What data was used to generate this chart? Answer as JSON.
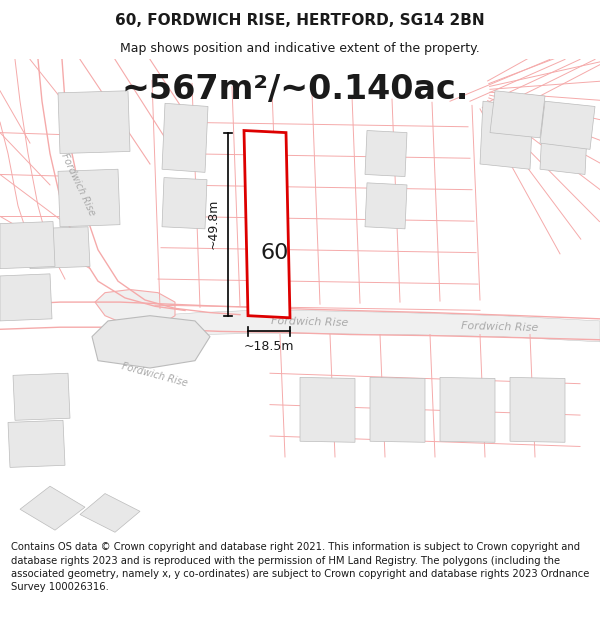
{
  "title": "60, FORDWICH RISE, HERTFORD, SG14 2BN",
  "subtitle": "Map shows position and indicative extent of the property.",
  "area_text": "~567m²/~0.140ac.",
  "label_60": "60",
  "dim_width": "~18.5m",
  "dim_height": "~49.8m",
  "road_label_center": "Fordwich Rise",
  "road_label_left": "Fordwich Rise",
  "road_label_right": "Fordwich Rise",
  "road_label_bottom": "Fordwich Rise",
  "copyright_text": "Contains OS data © Crown copyright and database right 2021. This information is subject to Crown copyright and database rights 2023 and is reproduced with the permission of HM Land Registry. The polygons (including the associated geometry, namely x, y co-ordinates) are subject to Crown copyright and database rights 2023 Ordnance Survey 100026316.",
  "bg_color": "#ffffff",
  "map_bg": "#ffffff",
  "plot_color_fill": "#ffffff",
  "plot_color_edge": "#dd0000",
  "neighbor_fill": "#e8e8e8",
  "neighbor_edge": "#bbbbbb",
  "road_line_color": "#f5aaaa",
  "road_fill_color": "#f0f0f0",
  "dim_line_color": "#000000",
  "text_color": "#1a1a1a",
  "road_text_color": "#aaaaaa",
  "title_fontsize": 11,
  "subtitle_fontsize": 9,
  "area_fontsize": 24,
  "label_fontsize": 16,
  "dim_fontsize": 9,
  "road_fontsize": 8,
  "copyright_fontsize": 7.2
}
